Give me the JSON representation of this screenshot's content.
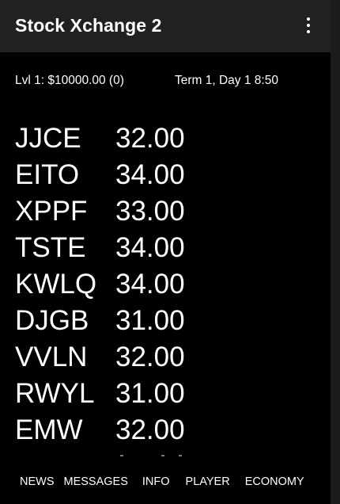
{
  "app_bar": {
    "title": "Stock Xchange 2",
    "menu_icon": "more-vert-icon"
  },
  "status": {
    "level_balance": "Lvl 1: $10000.00 (0)",
    "term_day_time": "Term 1, Day 1  8:50"
  },
  "stocks": [
    {
      "symbol": "JJCE",
      "price": "32.00"
    },
    {
      "symbol": "EITO",
      "price": "34.00"
    },
    {
      "symbol": "XPPF",
      "price": "33.00"
    },
    {
      "symbol": "TSTE",
      "price": "34.00"
    },
    {
      "symbol": "KWLQ",
      "price": "34.00"
    },
    {
      "symbol": "DJGB",
      "price": "31.00"
    },
    {
      "symbol": "VVLN",
      "price": "32.00"
    },
    {
      "symbol": "RWYL",
      "price": "31.00"
    },
    {
      "symbol": "EMW",
      "price": "32.00"
    }
  ],
  "bottom_nav": {
    "tabs": [
      {
        "label": "NEWS"
      },
      {
        "label": "MESSAGES"
      },
      {
        "label": "INFO"
      },
      {
        "label": "PLAYER"
      },
      {
        "label": "ECONOMY"
      }
    ]
  },
  "colors": {
    "background": "#000000",
    "app_bar": "#212121",
    "text": "#ffffff"
  }
}
